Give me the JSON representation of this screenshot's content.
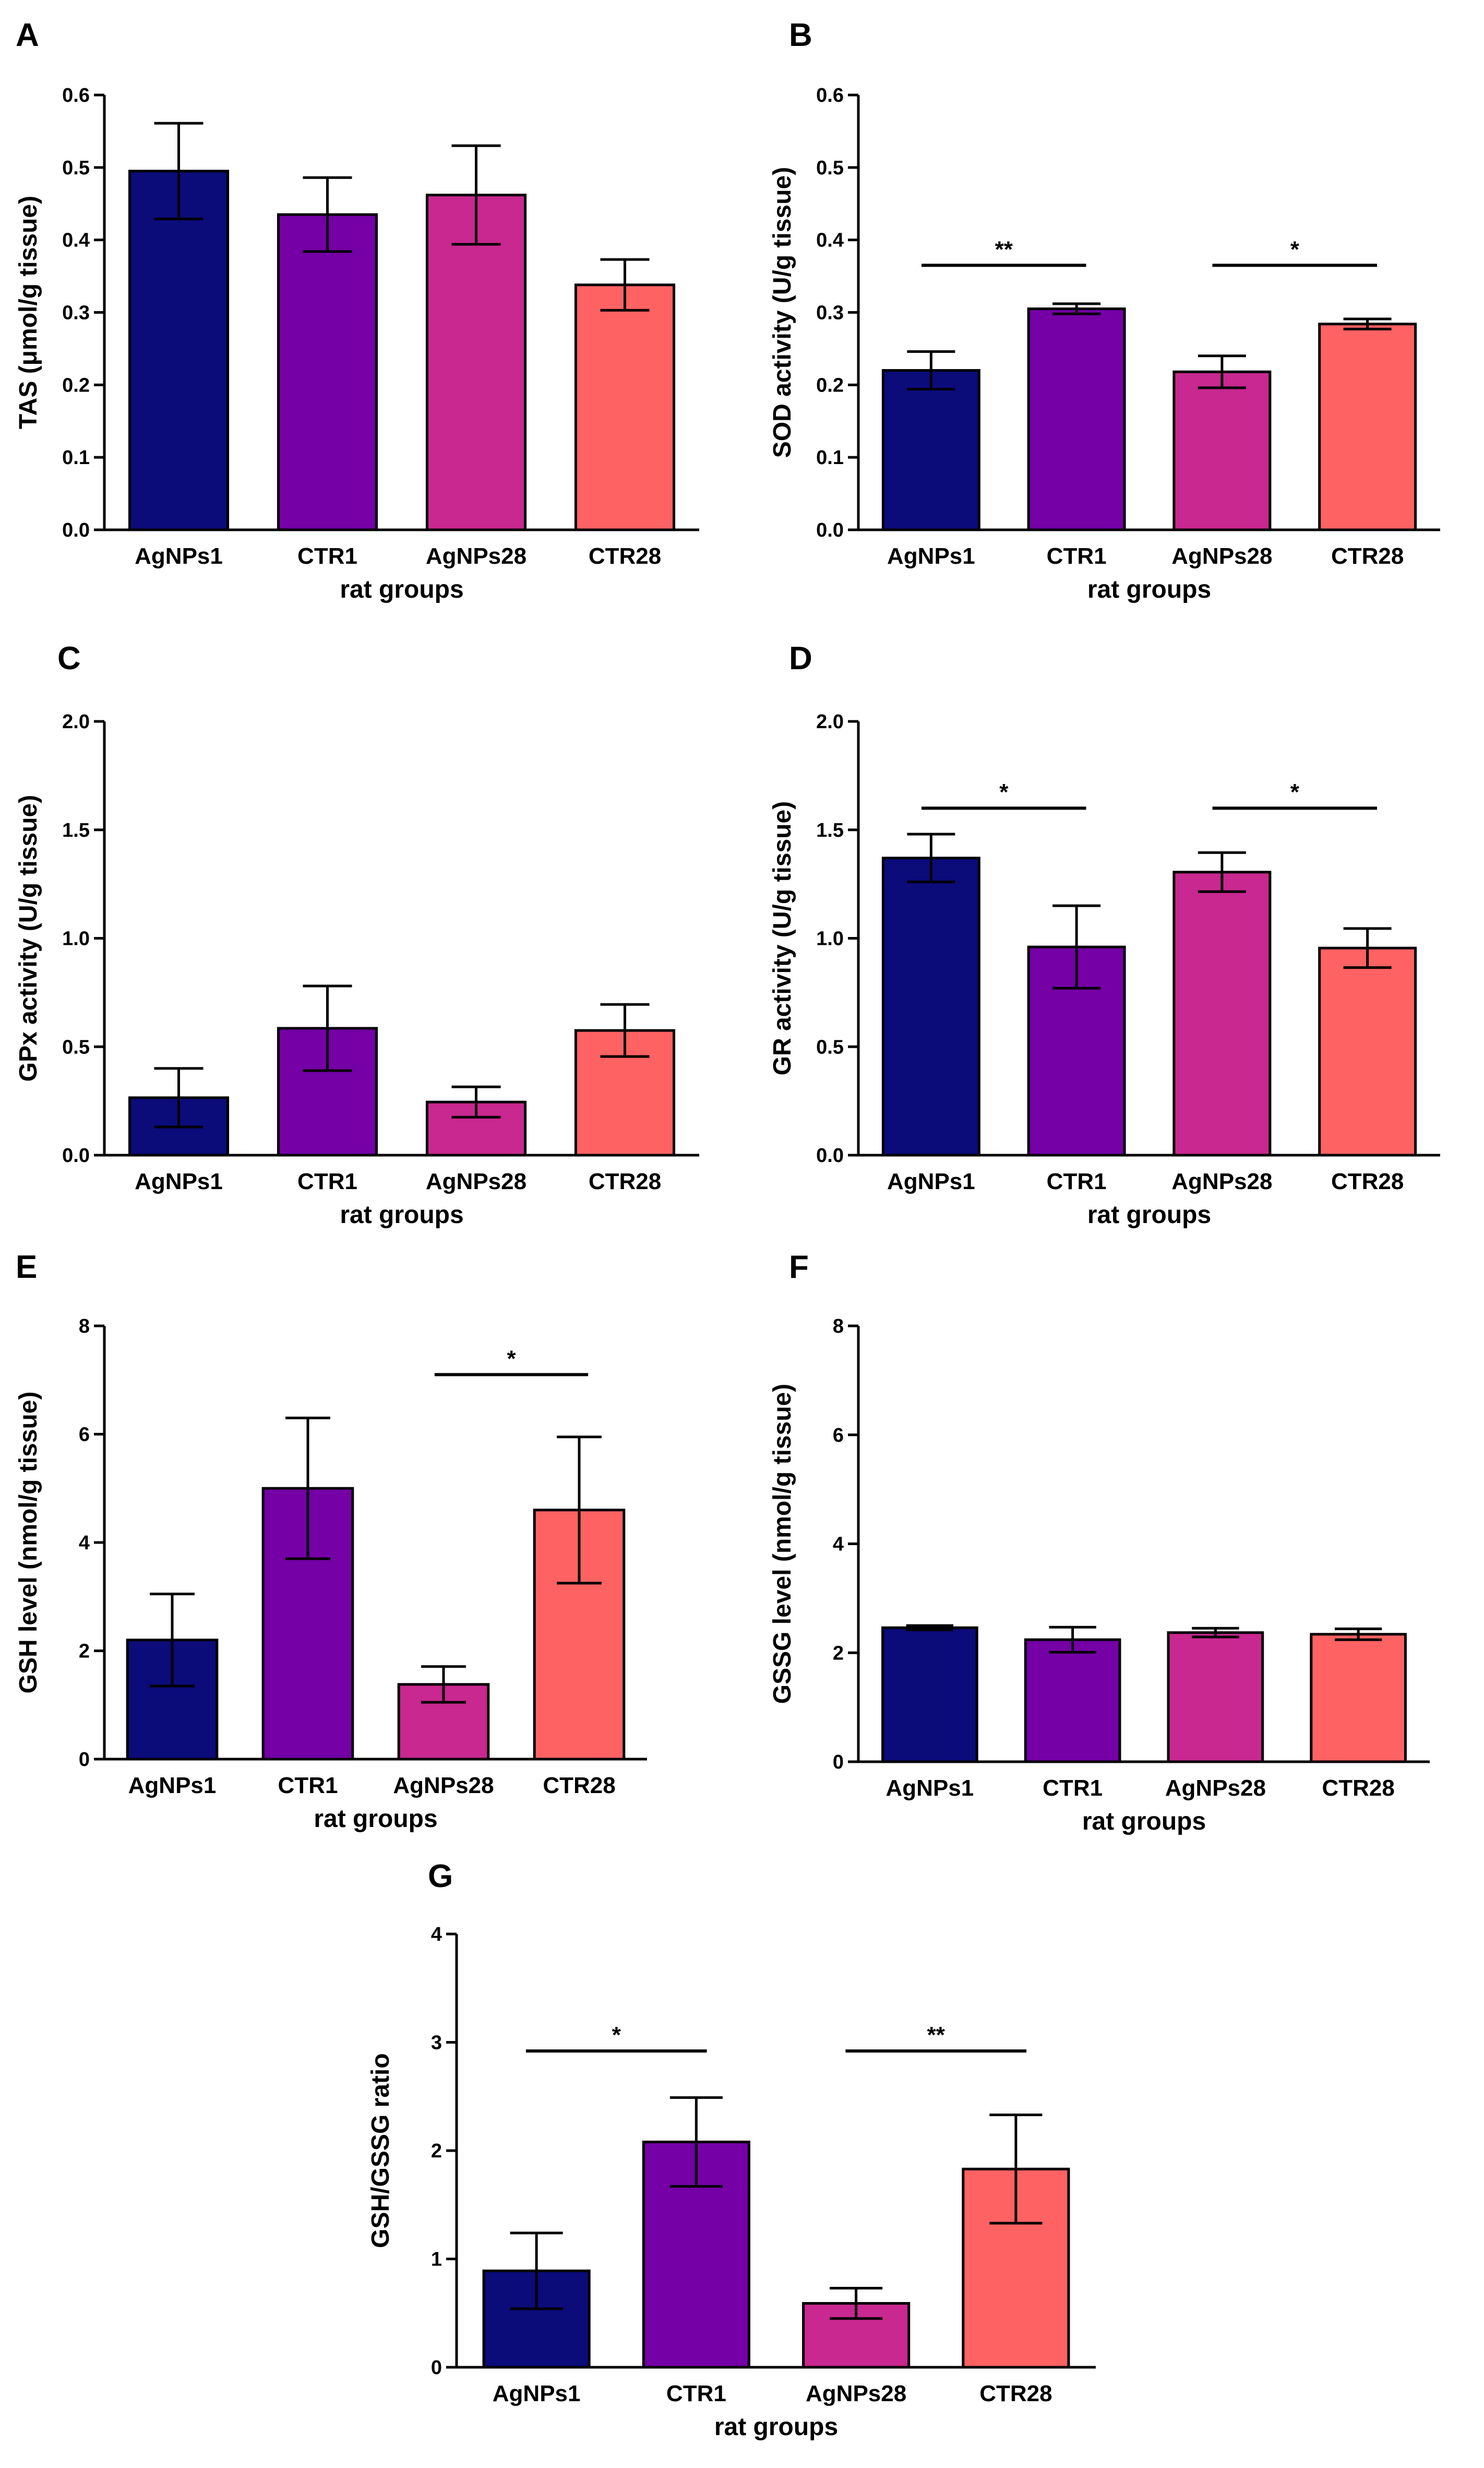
{
  "colors": {
    "AgNPs1": "#0b0b7a",
    "CTR1": "#7400a6",
    "AgNPs28": "#c8288f",
    "CTR28": "#ff6262"
  },
  "chart_data": [
    {
      "panel": "A",
      "type": "bar",
      "categories": [
        "AgNPs1",
        "CTR1",
        "AgNPs28",
        "CTR28"
      ],
      "values": [
        0.495,
        0.435,
        0.462,
        0.338
      ],
      "errors": [
        0.066,
        0.051,
        0.068,
        0.035
      ],
      "ylim": [
        0,
        0.6
      ],
      "yticks": [
        "0.0",
        "0.1",
        "0.2",
        "0.3",
        "0.4",
        "0.5",
        "0.6"
      ],
      "ylabel": "TAS (μmol/g tissue)",
      "xlabel": "rat groups",
      "significance": []
    },
    {
      "panel": "B",
      "type": "bar",
      "categories": [
        "AgNPs1",
        "CTR1",
        "AgNPs28",
        "CTR28"
      ],
      "values": [
        0.22,
        0.305,
        0.218,
        0.284
      ],
      "errors": [
        0.026,
        0.007,
        0.022,
        0.007
      ],
      "ylim": [
        0,
        0.6
      ],
      "yticks": [
        "0.0",
        "0.1",
        "0.2",
        "0.3",
        "0.4",
        "0.5",
        "0.6"
      ],
      "ylabel": "SOD activity (U/g tissue)",
      "xlabel": "rat groups",
      "significance": [
        {
          "from": 0,
          "to": 1,
          "y": 0.365,
          "label": "**"
        },
        {
          "from": 2,
          "to": 3,
          "y": 0.365,
          "label": "*"
        }
      ]
    },
    {
      "panel": "C",
      "type": "bar",
      "categories": [
        "AgNPs1",
        "CTR1",
        "AgNPs28",
        "CTR28"
      ],
      "values": [
        0.265,
        0.585,
        0.245,
        0.575
      ],
      "errors": [
        0.135,
        0.195,
        0.07,
        0.12
      ],
      "ylim": [
        0,
        2.0
      ],
      "yticks": [
        "0.0",
        "0.5",
        "1.0",
        "1.5",
        "2.0"
      ],
      "ylabel": "GPx activity (U/g tissue)",
      "xlabel": "rat groups",
      "significance": []
    },
    {
      "panel": "D",
      "type": "bar",
      "categories": [
        "AgNPs1",
        "CTR1",
        "AgNPs28",
        "CTR28"
      ],
      "values": [
        1.37,
        0.96,
        1.305,
        0.955
      ],
      "errors": [
        0.11,
        0.19,
        0.09,
        0.09
      ],
      "ylim": [
        0,
        2.0
      ],
      "yticks": [
        "0.0",
        "0.5",
        "1.0",
        "1.5",
        "2.0"
      ],
      "ylabel": "GR activity  (U/g tissue)",
      "xlabel": "rat groups",
      "significance": [
        {
          "from": 0,
          "to": 1,
          "y": 1.6,
          "label": "*"
        },
        {
          "from": 2,
          "to": 3,
          "y": 1.6,
          "label": "*"
        }
      ]
    },
    {
      "panel": "E",
      "type": "bar",
      "categories": [
        "AgNPs1",
        "CTR1",
        "AgNPs28",
        "CTR28"
      ],
      "values": [
        2.2,
        5.0,
        1.38,
        4.6
      ],
      "errors": [
        0.85,
        1.3,
        0.33,
        1.35
      ],
      "ylim": [
        0,
        8
      ],
      "yticks": [
        "0",
        "2",
        "4",
        "6",
        "8"
      ],
      "ylabel": "GSH level (nmol/g tissue)",
      "xlabel": "rat groups",
      "significance": [
        {
          "from": 2,
          "to": 3,
          "y": 7.1,
          "label": "*"
        }
      ]
    },
    {
      "panel": "F",
      "type": "bar",
      "categories": [
        "AgNPs1",
        "CTR1",
        "AgNPs28",
        "CTR28"
      ],
      "values": [
        2.46,
        2.24,
        2.37,
        2.34
      ],
      "errors": [
        0.04,
        0.23,
        0.08,
        0.1
      ],
      "ylim": [
        0,
        8
      ],
      "yticks": [
        "0",
        "2",
        "4",
        "6",
        "8"
      ],
      "ylabel": "GSSG level (nmol/g tissue)",
      "xlabel": "rat groups",
      "significance": []
    },
    {
      "panel": "G",
      "type": "bar",
      "categories": [
        "AgNPs1",
        "CTR1",
        "AgNPs28",
        "CTR28"
      ],
      "values": [
        0.89,
        2.08,
        0.59,
        1.83
      ],
      "errors": [
        0.35,
        0.41,
        0.14,
        0.5
      ],
      "ylim": [
        0,
        4
      ],
      "yticks": [
        "0",
        "1",
        "2",
        "3",
        "4"
      ],
      "ylabel": "GSH/GSSG ratio",
      "xlabel": "rat groups",
      "significance": [
        {
          "from": 0,
          "to": 1,
          "y": 2.92,
          "label": "*"
        },
        {
          "from": 2,
          "to": 3,
          "y": 2.92,
          "label": "**"
        }
      ]
    }
  ]
}
